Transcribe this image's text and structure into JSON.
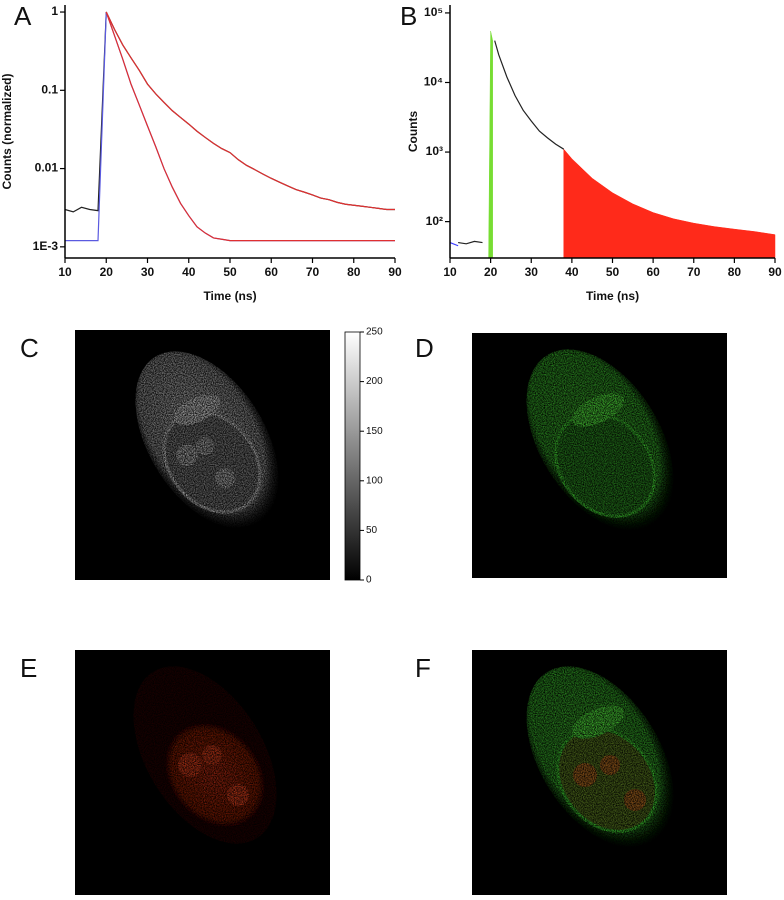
{
  "chart_data": [
    {
      "type": "line",
      "xlabel": "Time (ns)",
      "ylabel": "Counts (normalized)",
      "log_y": true,
      "xlim": [
        10,
        90
      ],
      "ylim": [
        0.00072,
        1.23
      ],
      "xticks": [
        10,
        20,
        30,
        40,
        50,
        60,
        70,
        80,
        90
      ],
      "yticks": [
        {
          "value": 0.001,
          "label": "1E-3"
        },
        0.01,
        0.1,
        1
      ],
      "x": [
        10,
        12,
        14,
        16,
        18,
        20,
        22,
        24,
        26,
        28,
        30,
        32,
        34,
        36,
        38,
        40,
        42,
        44,
        46,
        48,
        50,
        52,
        54,
        56,
        58,
        60,
        62,
        64,
        66,
        68,
        70,
        72,
        74,
        76,
        78,
        80,
        82,
        84,
        86,
        88,
        90
      ],
      "series": [
        {
          "color": "#222222",
          "style": "line",
          "values": [
            0.003,
            0.0028,
            0.0032,
            0.003,
            0.0029,
            1.0,
            0.6,
            0.38,
            0.26,
            0.18,
            0.12,
            0.09,
            0.07,
            0.055,
            0.045,
            0.037,
            0.03,
            0.025,
            0.021,
            0.018,
            0.016,
            0.013,
            0.011,
            0.0097,
            0.0085,
            0.0075,
            0.0067,
            0.006,
            0.0054,
            0.005,
            0.0046,
            0.0042,
            0.004,
            0.0037,
            0.0035,
            0.0034,
            0.0033,
            0.0032,
            0.0031,
            0.003,
            0.003
          ]
        },
        {
          "color": "#5a5ae0",
          "style": "line",
          "values": [
            0.0012,
            0.0012,
            0.0012,
            0.0012,
            0.0012,
            1.0,
            0.5,
            0.25,
            0.12,
            0.065,
            0.035,
            0.019,
            0.01,
            0.0058,
            0.0036,
            0.0025,
            0.0018,
            0.0015,
            0.0013,
            0.00125,
            0.0012,
            0.0012,
            0.0012,
            0.0012,
            0.0012,
            0.0012,
            0.0012,
            0.0012,
            0.0012,
            0.0012,
            0.0012,
            0.0012,
            0.0012,
            0.0012,
            0.0012,
            0.0012,
            0.0012,
            0.0012,
            0.0012,
            0.0012,
            0.0012
          ]
        },
        {
          "color": "#e03030",
          "style": "line",
          "values": [
            null,
            null,
            null,
            null,
            null,
            1.0,
            0.6,
            0.38,
            0.26,
            0.18,
            0.12,
            0.09,
            0.07,
            0.055,
            0.045,
            0.037,
            0.03,
            0.025,
            0.021,
            0.018,
            0.016,
            0.013,
            0.011,
            0.0097,
            0.0085,
            0.0075,
            0.0067,
            0.006,
            0.0054,
            0.005,
            0.0046,
            0.0042,
            0.004,
            0.0037,
            0.0035,
            0.0034,
            0.0033,
            0.0032,
            0.0031,
            0.003,
            0.003
          ]
        },
        {
          "color": "#e03030",
          "style": "line",
          "values": [
            null,
            null,
            null,
            null,
            null,
            1.0,
            0.5,
            0.25,
            0.12,
            0.065,
            0.035,
            0.019,
            0.01,
            0.0058,
            0.0036,
            0.0025,
            0.0018,
            0.0015,
            0.0013,
            0.00125,
            0.0012,
            0.0012,
            0.0012,
            0.0012,
            0.0012,
            0.0012,
            0.0012,
            0.0012,
            0.0012,
            0.0012,
            0.0012,
            0.0012,
            0.0012,
            0.0012,
            0.0012,
            0.0012,
            0.0012,
            0.0012,
            0.0012,
            0.0012,
            0.0012
          ]
        }
      ]
    },
    {
      "type": "line",
      "xlabel": "Time (ns)",
      "ylabel": "Counts",
      "log_y": true,
      "xlim": [
        10,
        90
      ],
      "ylim": [
        30,
        130000
      ],
      "xticks": [
        10,
        20,
        30,
        40,
        50,
        60,
        70,
        80,
        90
      ],
      "yticks": [
        {
          "value": 100,
          "label": "10²"
        },
        {
          "value": 1000,
          "label": "10³"
        },
        {
          "value": 10000,
          "label": "10⁴"
        },
        {
          "value": 100000,
          "label": "10⁵"
        }
      ],
      "x": [
        10,
        12,
        14,
        16,
        18,
        19.5,
        20,
        20.5,
        21,
        22,
        24,
        26,
        28,
        30,
        32,
        34,
        36,
        38,
        40,
        45,
        50,
        55,
        60,
        65,
        70,
        75,
        80,
        85,
        90
      ],
      "series": [
        {
          "color": "#ff2a1a",
          "style": "area",
          "values": [
            null,
            null,
            null,
            null,
            null,
            null,
            null,
            null,
            null,
            null,
            null,
            null,
            null,
            null,
            null,
            null,
            null,
            1100,
            800,
            420,
            260,
            180,
            135,
            110,
            95,
            85,
            78,
            72,
            65
          ]
        },
        {
          "color": "#77dd33",
          "style": "area",
          "values": [
            null,
            null,
            null,
            null,
            null,
            30,
            55000,
            40000,
            null,
            null,
            null,
            null,
            null,
            null,
            null,
            null,
            null,
            null,
            null,
            null,
            null,
            null,
            null,
            null,
            null,
            null,
            null,
            null,
            null
          ]
        },
        {
          "color": "#222222",
          "style": "line",
          "values": [
            null,
            50,
            48,
            52,
            50,
            null,
            null,
            null,
            40000,
            25000,
            12000,
            6500,
            4000,
            2800,
            2000,
            1600,
            1300,
            1100,
            null,
            null,
            null,
            null,
            null,
            null,
            null,
            null,
            null,
            null,
            null
          ]
        },
        {
          "color": "#3a3aff",
          "style": "line",
          "values": [
            50,
            45,
            null,
            null,
            null,
            null,
            null,
            null,
            null,
            null,
            null,
            null,
            null,
            null,
            null,
            null,
            null,
            null,
            null,
            null,
            null,
            null,
            null,
            null,
            null,
            null,
            null,
            null,
            null
          ]
        }
      ]
    }
  ],
  "panel_labels": [
    "A",
    "B",
    "C",
    "D",
    "E",
    "F"
  ],
  "colorbar": {
    "lim": [
      0,
      250
    ],
    "ticks": [
      0,
      50,
      100,
      150,
      200,
      250
    ]
  }
}
